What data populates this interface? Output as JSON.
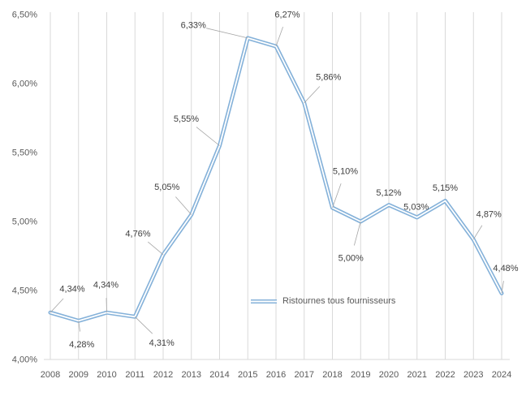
{
  "chart_data": {
    "type": "line",
    "title": "",
    "categories": [
      "2008",
      "2009",
      "2010",
      "2011",
      "2012",
      "2013",
      "2014",
      "2015",
      "2016",
      "2017",
      "2018",
      "2019",
      "2020",
      "2021",
      "2022",
      "2023",
      "2024"
    ],
    "series": [
      {
        "name": "Ristournes tous fournisseurs",
        "values": [
          4.34,
          4.28,
          4.34,
          4.31,
          4.76,
          5.05,
          5.55,
          6.33,
          6.27,
          5.86,
          5.1,
          5.0,
          5.12,
          5.03,
          5.15,
          4.87,
          4.48
        ]
      }
    ],
    "data_labels": [
      "4,34%",
      "4,28%",
      "4,34%",
      "4,31%",
      "4,76%",
      "5,05%",
      "5,55%",
      "6,33%",
      "6,27%",
      "5,86%",
      "5,10%",
      "5,00%",
      "5,12%",
      "5,03%",
      "5,15%",
      "4,87%",
      "4,48%"
    ],
    "y_axis": {
      "min": 4.0,
      "max": 6.5,
      "tick_values": [
        4.0,
        4.5,
        5.0,
        5.5,
        6.0,
        6.5
      ],
      "tick_labels": [
        "4,00%",
        "4,50%",
        "5,00%",
        "5,50%",
        "6,00%",
        "6,50%"
      ]
    },
    "grid": "vertical",
    "legend": {
      "position": "bottom-center",
      "label": "Ristournes tous fournisseurs"
    },
    "colors": {
      "line": "#84b1d9",
      "line_inner": "#ffffff",
      "grid": "#d9d9d9",
      "axis_text": "#595959",
      "label_text": "#404040",
      "leader": "#a6a6a6"
    }
  }
}
